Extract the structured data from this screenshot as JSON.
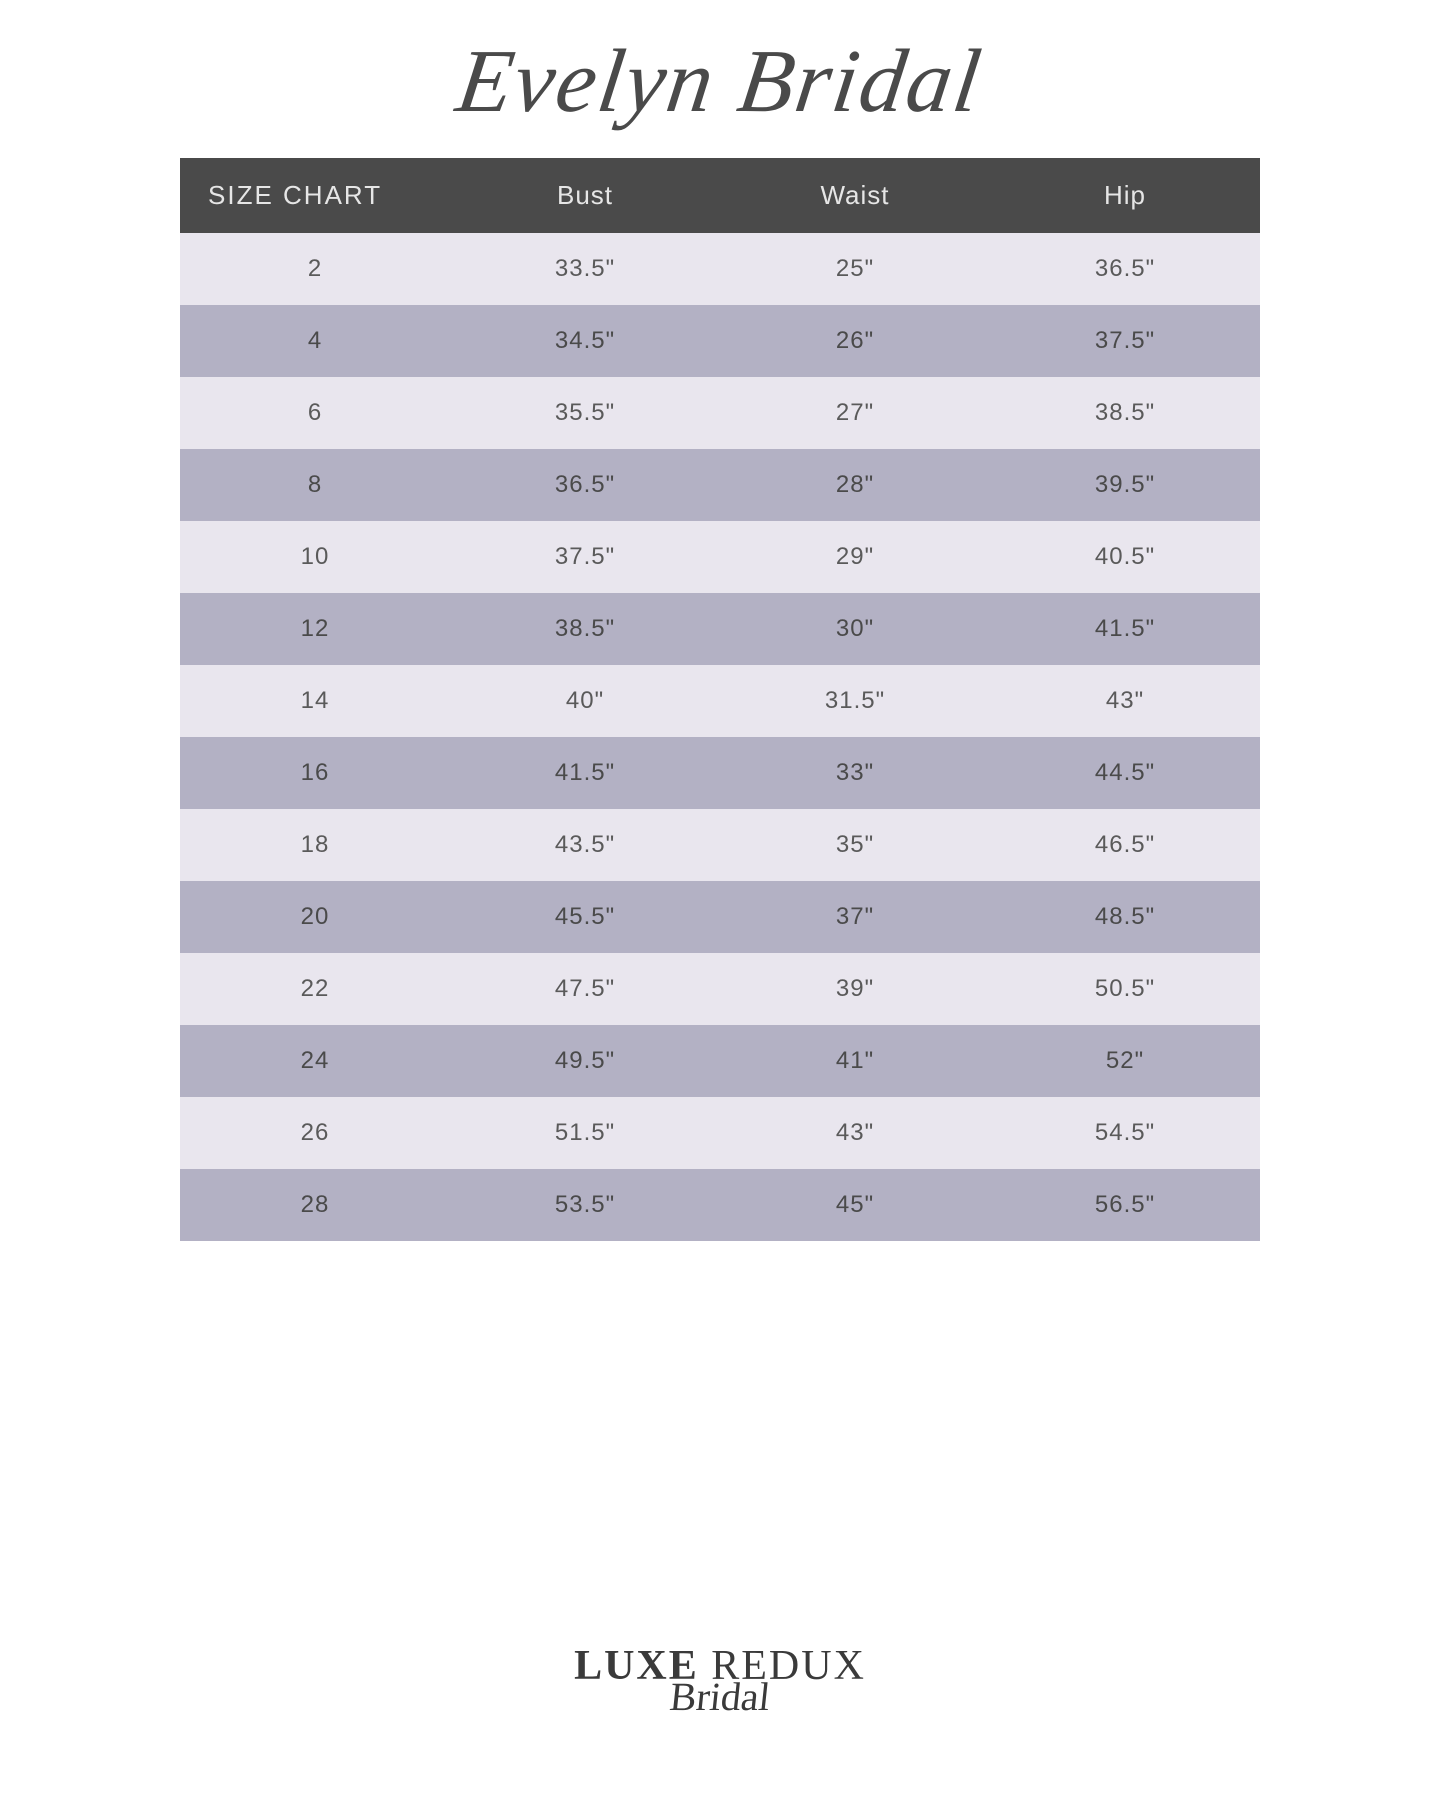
{
  "title": "Evelyn Bridal",
  "table": {
    "type": "table",
    "header_bg": "#4a4a4a",
    "header_text_color": "#e6e6e6",
    "row_light_bg": "#e9e6ee",
    "row_dark_bg": "#b3b1c4",
    "cell_text_color": "#5a5a5a",
    "font_size_header": 26,
    "font_size_cell": 24,
    "columns": [
      "SIZE CHART",
      "Bust",
      "Waist",
      "Hip"
    ],
    "rows": [
      [
        "2",
        "33.5\"",
        "25\"",
        "36.5\""
      ],
      [
        "4",
        "34.5\"",
        "26\"",
        "37.5\""
      ],
      [
        "6",
        "35.5\"",
        "27\"",
        "38.5\""
      ],
      [
        "8",
        "36.5\"",
        "28\"",
        "39.5\""
      ],
      [
        "10",
        "37.5\"",
        "29\"",
        "40.5\""
      ],
      [
        "12",
        "38.5\"",
        "30\"",
        "41.5\""
      ],
      [
        "14",
        "40\"",
        "31.5\"",
        "43\""
      ],
      [
        "16",
        "41.5\"",
        "33\"",
        "44.5\""
      ],
      [
        "18",
        "43.5\"",
        "35\"",
        "46.5\""
      ],
      [
        "20",
        "45.5\"",
        "37\"",
        "48.5\""
      ],
      [
        "22",
        "47.5\"",
        "39\"",
        "50.5\""
      ],
      [
        "24",
        "49.5\"",
        "41\"",
        "52\""
      ],
      [
        "26",
        "51.5\"",
        "43\"",
        "54.5\""
      ],
      [
        "28",
        "53.5\"",
        "45\"",
        "56.5\""
      ]
    ]
  },
  "footer": {
    "line1_a": "LUXE",
    "line1_b": "REDUX",
    "line2": "Bridal"
  }
}
